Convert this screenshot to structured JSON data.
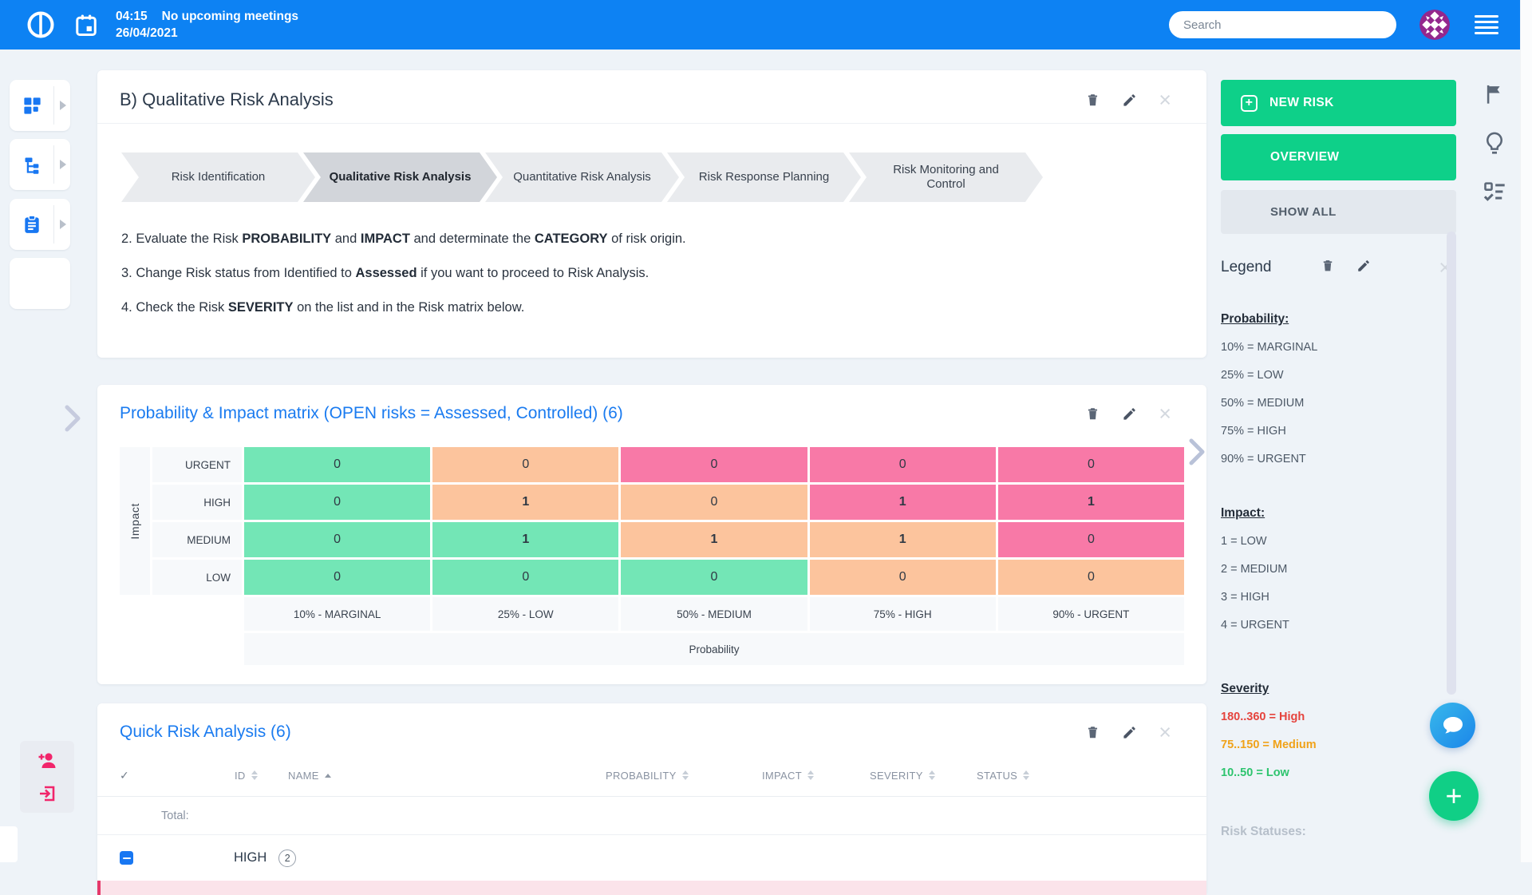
{
  "topbar": {
    "time": "04:15",
    "meetings": "No upcoming meetings",
    "date": "26/04/2021",
    "search_placeholder": "Search"
  },
  "glyphs": {
    "close": "×",
    "check": "✓",
    "plus": "+"
  },
  "colors": {
    "topbar_blue": "#0d82f3",
    "accent_blue": "#1a7bf0",
    "action_green": "#0ed089",
    "pink_icon": "#f1256b",
    "matrix": {
      "green": "#73e6b6",
      "orange": "#fcc49d",
      "pink": "#f879a7"
    }
  },
  "panel1": {
    "title": "B) Qualitative Risk Analysis"
  },
  "process": {
    "steps": [
      {
        "label": "Risk Identification",
        "active": false
      },
      {
        "label": "Qualitative Risk Analysis",
        "active": true
      },
      {
        "label": "Quantitative Risk Analysis",
        "active": false
      },
      {
        "label": "Risk Response Planning",
        "active": false
      },
      {
        "label": "Risk Monitoring and Control",
        "active": false
      }
    ]
  },
  "instructions": [
    [
      {
        "t": "2. Evaluate the Risk ",
        "b": false
      },
      {
        "t": "PROBABILITY",
        "b": true
      },
      {
        "t": " and ",
        "b": false
      },
      {
        "t": "IMPACT",
        "b": true
      },
      {
        "t": " and determinate the ",
        "b": false
      },
      {
        "t": "CATEGORY",
        "b": true
      },
      {
        "t": " of risk origin.",
        "b": false
      }
    ],
    [
      {
        "t": "3. Change Risk status from Identified to ",
        "b": false
      },
      {
        "t": "Assessed",
        "b": true
      },
      {
        "t": " if you want to proceed to Risk Analysis.",
        "b": false
      }
    ],
    [
      {
        "t": "4. Check the Risk ",
        "b": false
      },
      {
        "t": "SEVERITY",
        "b": true
      },
      {
        "t": " on the list and in the Risk matrix below.",
        "b": false
      }
    ]
  ],
  "matrix": {
    "title": "Probability & Impact matrix (OPEN risks = Assessed, Controlled) (6)",
    "y_axis_label": "Impact",
    "x_axis_label": "Probability",
    "row_labels": [
      "URGENT",
      "HIGH",
      "MEDIUM",
      "LOW"
    ],
    "col_labels": [
      "10% - MARGINAL",
      "25% - LOW",
      "50% - MEDIUM",
      "75% - HIGH",
      "90% - URGENT"
    ],
    "cells": [
      [
        {
          "v": "0",
          "c": "green"
        },
        {
          "v": "0",
          "c": "orange"
        },
        {
          "v": "0",
          "c": "pink"
        },
        {
          "v": "0",
          "c": "pink"
        },
        {
          "v": "0",
          "c": "pink"
        }
      ],
      [
        {
          "v": "0",
          "c": "green"
        },
        {
          "v": "1",
          "c": "orange"
        },
        {
          "v": "0",
          "c": "orange"
        },
        {
          "v": "1",
          "c": "pink"
        },
        {
          "v": "1",
          "c": "pink"
        }
      ],
      [
        {
          "v": "0",
          "c": "green"
        },
        {
          "v": "1",
          "c": "green"
        },
        {
          "v": "1",
          "c": "orange"
        },
        {
          "v": "1",
          "c": "orange"
        },
        {
          "v": "0",
          "c": "pink"
        }
      ],
      [
        {
          "v": "0",
          "c": "green"
        },
        {
          "v": "0",
          "c": "green"
        },
        {
          "v": "0",
          "c": "green"
        },
        {
          "v": "0",
          "c": "orange"
        },
        {
          "v": "0",
          "c": "orange"
        }
      ]
    ]
  },
  "quick": {
    "title": "Quick Risk Analysis (6)",
    "columns": [
      {
        "label": "ID",
        "sort": "both"
      },
      {
        "label": "NAME",
        "sort": "asc"
      },
      {
        "label": "PROBABILITY",
        "sort": "both"
      },
      {
        "label": "IMPACT",
        "sort": "both"
      },
      {
        "label": "SEVERITY",
        "sort": "both"
      },
      {
        "label": "STATUS",
        "sort": "both"
      }
    ],
    "total_label": "Total:",
    "group": {
      "label": "HIGH",
      "count": "2"
    }
  },
  "right_sidebar": {
    "new_risk": "NEW RISK",
    "overview": "OVERVIEW",
    "show_all": "SHOW ALL",
    "legend": {
      "title": "Legend",
      "sections": [
        {
          "heading": "Probability:",
          "muted": false,
          "items": [
            {
              "text": "10% = MARGINAL"
            },
            {
              "text": "25% = LOW"
            },
            {
              "text": "50% = MEDIUM"
            },
            {
              "text": "75% = HIGH"
            },
            {
              "text": "90% = URGENT"
            }
          ]
        },
        {
          "heading": "Impact:",
          "muted": false,
          "items": [
            {
              "text": "1 = LOW"
            },
            {
              "text": "2 = MEDIUM"
            },
            {
              "text": "3 = HIGH"
            },
            {
              "text": "4 = URGENT"
            }
          ]
        },
        {
          "heading": "Severity",
          "muted": false,
          "items": [
            {
              "text": "180..360 = High",
              "color": "#e5433d"
            },
            {
              "text": "75..150 = Medium",
              "color": "#f0a219"
            },
            {
              "text": "10..50 = Low",
              "color": "#2dc46e"
            }
          ]
        },
        {
          "heading": "Risk Statuses:",
          "muted": true,
          "items": []
        }
      ]
    }
  }
}
